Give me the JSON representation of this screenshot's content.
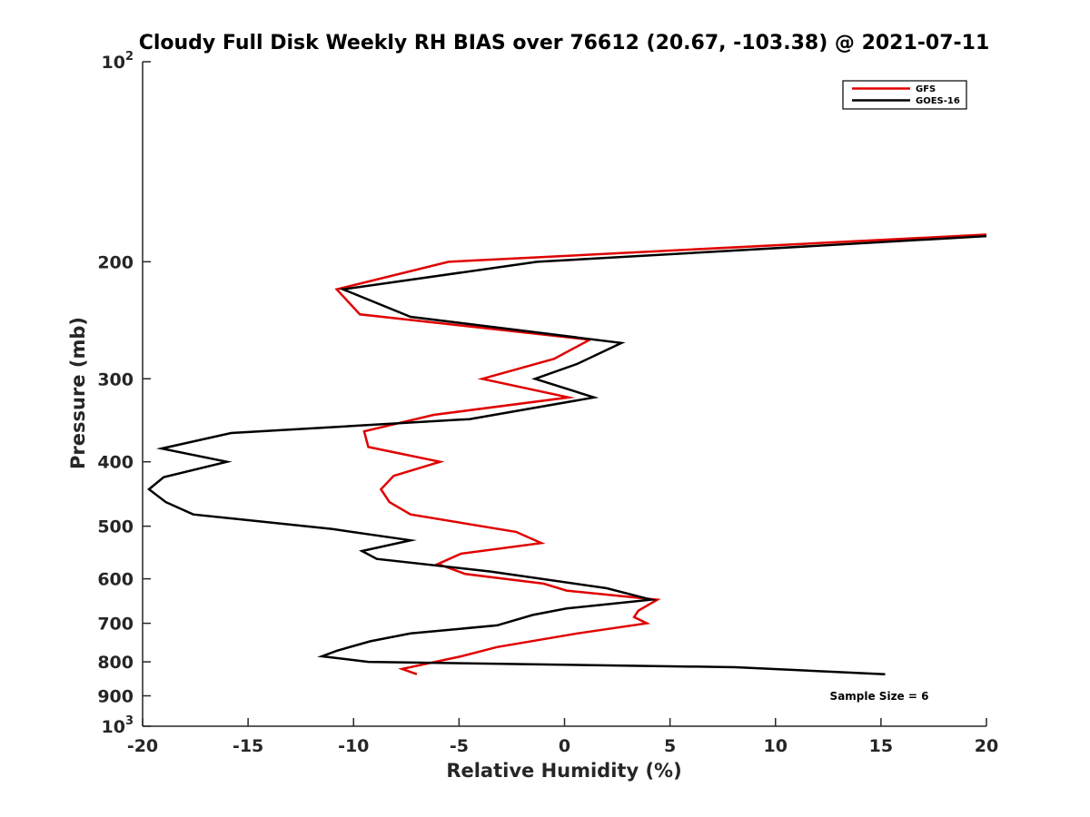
{
  "chart_data": {
    "type": "line",
    "orientation": "profile",
    "title": "Cloudy Full Disk Weekly RH BIAS over 76612 (20.67, -103.38) @ 2021-07-11",
    "xlabel": "Relative Humidity (%)",
    "ylabel": "Pressure (mb)",
    "xlim": [
      -20,
      20
    ],
    "ylim": [
      100,
      1000
    ],
    "yscale": "log",
    "y_reversed": true,
    "x_ticks": [
      -20,
      -15,
      -10,
      -5,
      0,
      5,
      10,
      15,
      20
    ],
    "x_tick_labels": [
      "-20",
      "-15",
      "-10",
      "-5",
      "0",
      "5",
      "10",
      "15",
      "20"
    ],
    "y_ticks": [
      100,
      200,
      300,
      400,
      500,
      600,
      700,
      800,
      900,
      1000
    ],
    "y_tick_labels": [
      {
        "base": "10",
        "exp": "2"
      },
      {
        "base": "200",
        "exp": ""
      },
      {
        "base": "300",
        "exp": ""
      },
      {
        "base": "400",
        "exp": ""
      },
      {
        "base": "500",
        "exp": ""
      },
      {
        "base": "600",
        "exp": ""
      },
      {
        "base": "700",
        "exp": ""
      },
      {
        "base": "800",
        "exp": ""
      },
      {
        "base": "900",
        "exp": ""
      },
      {
        "base": "10",
        "exp": "3"
      }
    ],
    "legend_position": "top-right",
    "annotation": "Sample Size = 6",
    "series": [
      {
        "name": "GFS",
        "color": "#e00000",
        "points": [
          [
            20,
            182
          ],
          [
            -5.5,
            200
          ],
          [
            -10.8,
            220
          ],
          [
            -9.7,
            240
          ],
          [
            1.2,
            262
          ],
          [
            -0.5,
            280
          ],
          [
            -3.9,
            300
          ],
          [
            0.2,
            320
          ],
          [
            -6.2,
            340
          ],
          [
            -9.5,
            360
          ],
          [
            -9.3,
            380
          ],
          [
            -5.9,
            400
          ],
          [
            -8.1,
            420
          ],
          [
            -8.7,
            440
          ],
          [
            -8.3,
            460
          ],
          [
            -7.3,
            480
          ],
          [
            -2.3,
            510
          ],
          [
            -1.1,
            530
          ],
          [
            -4.9,
            550
          ],
          [
            -6.0,
            570
          ],
          [
            -4.7,
            590
          ],
          [
            -1.0,
            610
          ],
          [
            0.1,
            625
          ],
          [
            4.4,
            645
          ],
          [
            3.5,
            670
          ],
          [
            3.3,
            685
          ],
          [
            3.9,
            700
          ],
          [
            0.6,
            725
          ],
          [
            -3.2,
            760
          ],
          [
            -4.9,
            785
          ],
          [
            -7.7,
            820
          ],
          [
            -7.0,
            835
          ]
        ]
      },
      {
        "name": "GOES-16",
        "color": "#000000",
        "points": [
          [
            20,
            183
          ],
          [
            -1.3,
            200
          ],
          [
            -10.5,
            220
          ],
          [
            -7.3,
            242
          ],
          [
            2.7,
            265
          ],
          [
            0.6,
            285
          ],
          [
            -1.4,
            300
          ],
          [
            1.4,
            320
          ],
          [
            -4.5,
            345
          ],
          [
            -15.8,
            362
          ],
          [
            -19.1,
            382
          ],
          [
            -16.0,
            400
          ],
          [
            -19.0,
            422
          ],
          [
            -19.7,
            440
          ],
          [
            -18.9,
            460
          ],
          [
            -17.6,
            480
          ],
          [
            -11.0,
            505
          ],
          [
            -7.3,
            525
          ],
          [
            -9.6,
            545
          ],
          [
            -8.9,
            560
          ],
          [
            -3.5,
            585
          ],
          [
            2.0,
            620
          ],
          [
            4.1,
            645
          ],
          [
            0.1,
            665
          ],
          [
            -1.5,
            680
          ],
          [
            -3.2,
            705
          ],
          [
            -7.3,
            725
          ],
          [
            -9.2,
            745
          ],
          [
            -10.8,
            770
          ],
          [
            -11.5,
            785
          ],
          [
            -9.3,
            800
          ],
          [
            8.1,
            815
          ],
          [
            15.2,
            835
          ]
        ]
      }
    ]
  }
}
